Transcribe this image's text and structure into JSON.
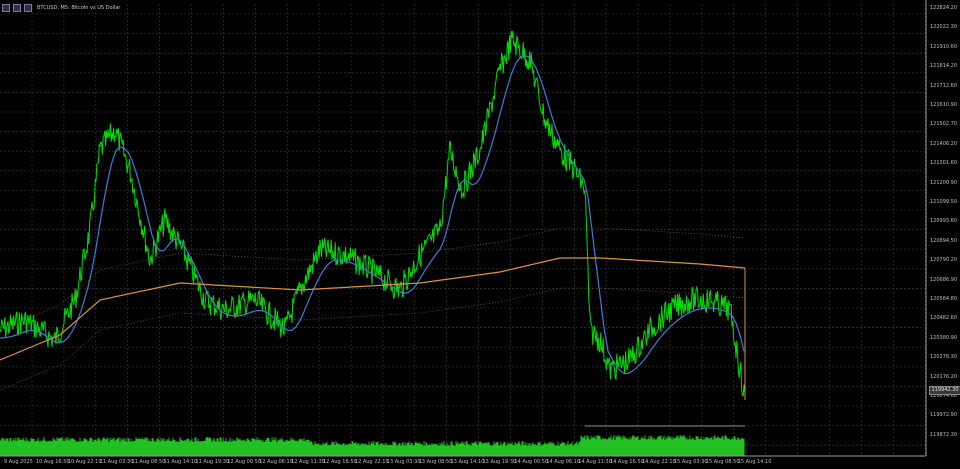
{
  "window": {
    "title": "BTCUSD, M5: Bitcoin vs US Dollar",
    "icons": [
      "chart-window-icon",
      "minimize-icon",
      "close-icon"
    ]
  },
  "colors": {
    "background": "#000000",
    "grid": "#3c3c3c",
    "price": "#00e000",
    "ma_fast": "#3d7dd6",
    "ma_slow": "#e0923a",
    "bands": "#8a6a2a",
    "volume": "#22c022",
    "axis_text": "#bdbdbd"
  },
  "y_axis": {
    "ticks": [
      "122824.20",
      "122022.30",
      "121910.60",
      "121814.20",
      "121712.60",
      "121610.90",
      "121502.70",
      "121406.20",
      "121301.60",
      "121200.90",
      "121099.50",
      "120993.60",
      "120894.50",
      "120790.20",
      "120686.90",
      "120584.80",
      "120482.60",
      "120380.90",
      "120278.30",
      "120176.20",
      "120074.60",
      "119972.90",
      "119872.30"
    ],
    "current_price": "119942.30"
  },
  "x_axis": {
    "ticks": [
      "9 Aug 2025",
      "10 Aug 16:50",
      "10 Aug 22:10",
      "11 Aug 03:30",
      "11 Aug 08:50",
      "11 Aug 14:10",
      "11 Aug 19:30",
      "12 Aug 00:50",
      "12 Aug 06:10",
      "12 Aug 11:30",
      "12 Aug 16:50",
      "12 Aug 22:10",
      "13 Aug 03:30",
      "13 Aug 08:50",
      "13 Aug 14:10",
      "13 Aug 19:30",
      "14 Aug 00:50",
      "14 Aug 06:10",
      "14 Aug 11:30",
      "14 Aug 16:50",
      "14 Aug 22:10",
      "15 Aug 03:30",
      "15 Aug 08:50",
      "15 Aug 14:10"
    ]
  }
}
